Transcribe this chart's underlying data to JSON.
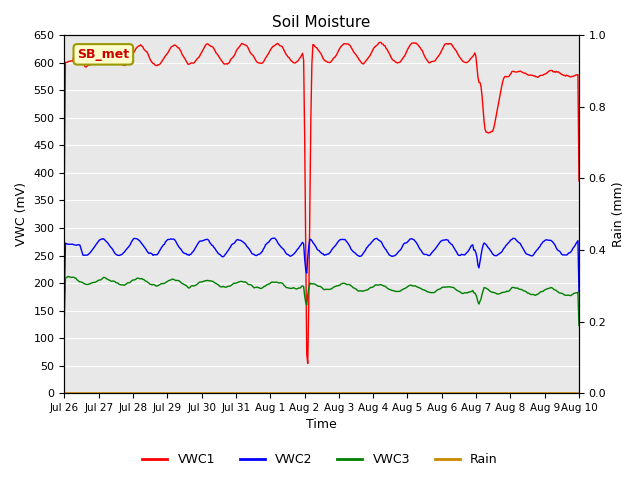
{
  "title": "Soil Moisture",
  "xlabel": "Time",
  "ylabel_left": "VWC (mV)",
  "ylabel_right": "Rain (mm)",
  "ylim_left": [
    0,
    650
  ],
  "ylim_right": [
    0.0,
    1.0
  ],
  "figure_bg": "#ffffff",
  "plot_bg": "#e8e8e8",
  "annotation_label": "SB_met",
  "annotation_fg": "#cc0000",
  "annotation_bg": "#ffffcc",
  "annotation_border": "#999900",
  "legend_entries": [
    "VWC1",
    "VWC2",
    "VWC3",
    "Rain"
  ],
  "line_colors": [
    "red",
    "blue",
    "green",
    "#cc8800"
  ],
  "xtick_labels": [
    "Jul 26",
    "Jul 27",
    "Jul 28",
    "Jul 29",
    "Jul 30",
    "Jul 31",
    "Aug 1",
    "Aug 2",
    "Aug 3",
    "Aug 4",
    "Aug 5",
    "Aug 6",
    "Aug 7",
    "Aug 8",
    "Aug 9",
    "Aug 10"
  ],
  "ytick_left": [
    0,
    50,
    100,
    150,
    200,
    250,
    300,
    350,
    400,
    450,
    500,
    550,
    600,
    650
  ],
  "ytick_right": [
    0.0,
    0.2,
    0.4,
    0.6,
    0.8,
    1.0
  ],
  "grid_color": "#ffffff",
  "n_days": 15,
  "n_points": 500
}
